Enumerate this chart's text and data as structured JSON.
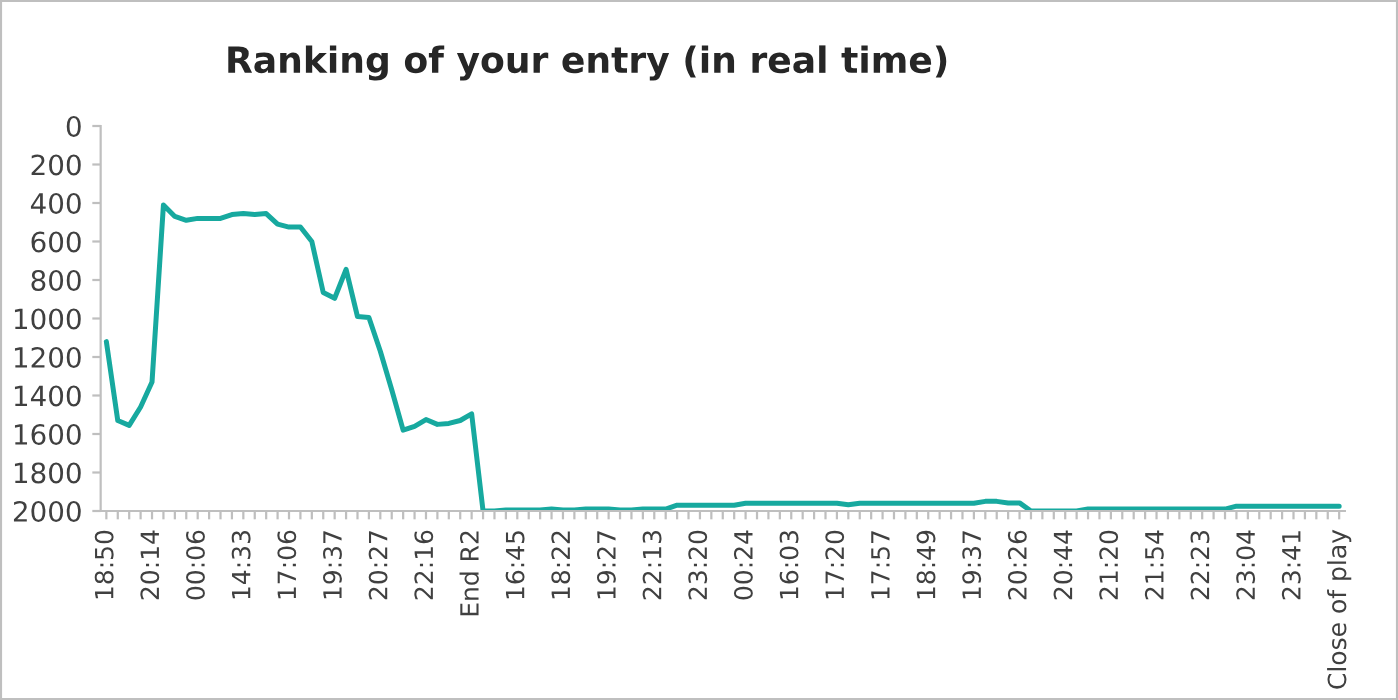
{
  "chart_data": {
    "type": "line",
    "title": "Ranking of your entry (in real time)",
    "categories": [
      "18:50",
      null,
      null,
      null,
      "20:14",
      null,
      null,
      null,
      "00:06",
      null,
      null,
      null,
      "14:33",
      null,
      null,
      null,
      "17:06",
      null,
      null,
      null,
      "19:37",
      null,
      null,
      null,
      "20:27",
      null,
      null,
      null,
      "22:16",
      null,
      null,
      null,
      "End R2",
      null,
      null,
      null,
      "16:45",
      null,
      null,
      null,
      "18:22",
      null,
      null,
      null,
      "19:27",
      null,
      null,
      null,
      "22:13",
      null,
      null,
      null,
      "23:20",
      null,
      null,
      null,
      "00:24",
      null,
      null,
      null,
      "16:03",
      null,
      null,
      null,
      "17:20",
      null,
      null,
      null,
      "17:57",
      null,
      null,
      null,
      "18:49",
      null,
      null,
      null,
      "19:37",
      null,
      null,
      null,
      "20:26",
      null,
      null,
      null,
      "20:44",
      null,
      null,
      null,
      "21:20",
      null,
      null,
      null,
      "21:54",
      null,
      null,
      null,
      "22:23",
      null,
      null,
      null,
      "23:04",
      null,
      null,
      null,
      "23:41",
      null,
      null,
      null,
      "Close of play"
    ],
    "series": [
      {
        "color": "#17a99f",
        "values": [
          1120,
          1530,
          1555,
          1460,
          1330,
          410,
          470,
          490,
          480,
          480,
          480,
          460,
          455,
          460,
          455,
          510,
          525,
          525,
          600,
          865,
          895,
          745,
          990,
          995,
          1170,
          1370,
          1580,
          1560,
          1525,
          1550,
          1545,
          1530,
          1495,
          2000,
          2000,
          1995,
          1995,
          1995,
          1995,
          1990,
          1995,
          1995,
          1990,
          1990,
          1990,
          1995,
          1995,
          1990,
          1990,
          1990,
          1970,
          1970,
          1970,
          1970,
          1970,
          1970,
          1960,
          1960,
          1960,
          1960,
          1960,
          1960,
          1960,
          1960,
          1960,
          1968,
          1960,
          1960,
          1960,
          1960,
          1960,
          1960,
          1960,
          1960,
          1960,
          1960,
          1960,
          1950,
          1950,
          1958,
          1958,
          2000,
          2000,
          2000,
          2000,
          2000,
          1990,
          1990,
          1990,
          1990,
          1990,
          1990,
          1990,
          1990,
          1990,
          1990,
          1990,
          1990,
          1990,
          1975,
          1975,
          1975,
          1975,
          1975,
          1975,
          1975,
          1975,
          1975,
          1975
        ]
      }
    ],
    "ylim": [
      2000,
      0
    ],
    "yticks": [
      0,
      200,
      400,
      600,
      800,
      1000,
      1200,
      1400,
      1600,
      1800,
      2000
    ],
    "grid": false,
    "legend": false,
    "marker": "none",
    "line_style": "solid"
  }
}
